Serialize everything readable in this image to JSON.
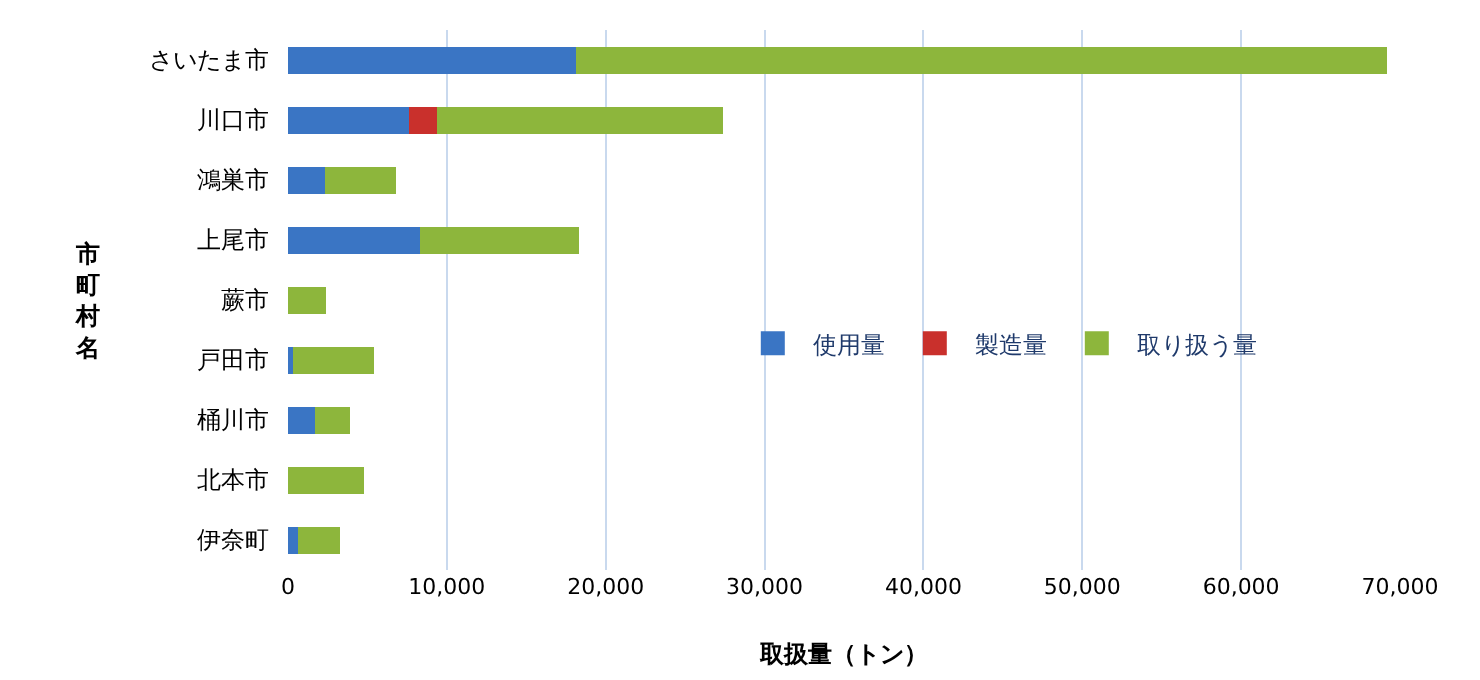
{
  "chart_data": {
    "type": "bar",
    "orientation": "horizontal",
    "stacked": true,
    "xlabel": "取扱量（トン）",
    "ylabel": "市町村名",
    "categories": [
      "さいたま市",
      "川口市",
      "鴻巣市",
      "上尾市",
      "蕨市",
      "戸田市",
      "桶川市",
      "北本市",
      "伊奈町"
    ],
    "series": [
      {
        "name": "使用量",
        "color": "#3a75c4",
        "values": [
          18100,
          7600,
          2300,
          8300,
          0,
          300,
          1700,
          0,
          600
        ]
      },
      {
        "name": "製造量",
        "color": "#c9302c",
        "values": [
          0,
          1800,
          0,
          0,
          0,
          0,
          0,
          0,
          0
        ]
      },
      {
        "name": "取り扱う量",
        "color": "#8db63c",
        "values": [
          51100,
          18000,
          4500,
          10000,
          2400,
          5100,
          2200,
          4800,
          2700
        ]
      }
    ],
    "xlim": [
      0,
      70000
    ],
    "xticks": [
      {
        "value": 0,
        "label": "0"
      },
      {
        "value": 10000,
        "label": "10,000"
      },
      {
        "value": 20000,
        "label": "20,000"
      },
      {
        "value": 30000,
        "label": "30,000"
      },
      {
        "value": 40000,
        "label": "40,000"
      },
      {
        "value": 50000,
        "label": "50,000"
      },
      {
        "value": 60000,
        "label": "60,000"
      },
      {
        "value": 70000,
        "label": "70,000"
      }
    ],
    "grid": "x",
    "legend": "right"
  }
}
